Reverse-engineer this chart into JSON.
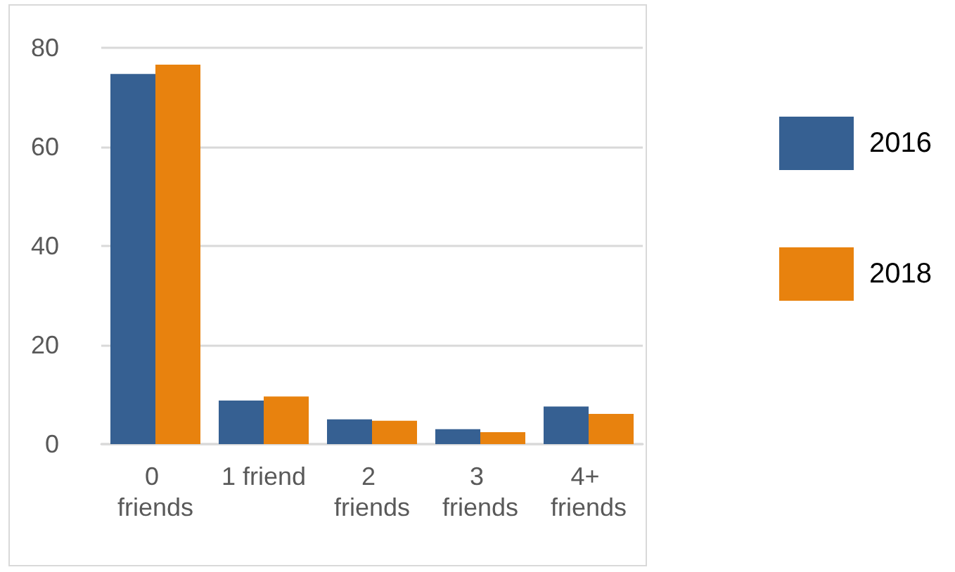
{
  "chart_data": {
    "type": "bar",
    "categories": [
      "0 friends",
      "1 friend",
      "2 friends",
      "3 friends",
      "4+ friends"
    ],
    "series": [
      {
        "name": "2016",
        "color": "#366092",
        "values": [
          74.7,
          8.8,
          5.0,
          3.0,
          7.6
        ]
      },
      {
        "name": "2018",
        "color": "#e8820e",
        "values": [
          76.6,
          9.6,
          4.7,
          2.4,
          6.1
        ]
      }
    ],
    "ylim": [
      0,
      80
    ],
    "yticks": [
      0,
      20,
      40,
      60,
      80
    ],
    "grid": "y",
    "legend": "right"
  }
}
